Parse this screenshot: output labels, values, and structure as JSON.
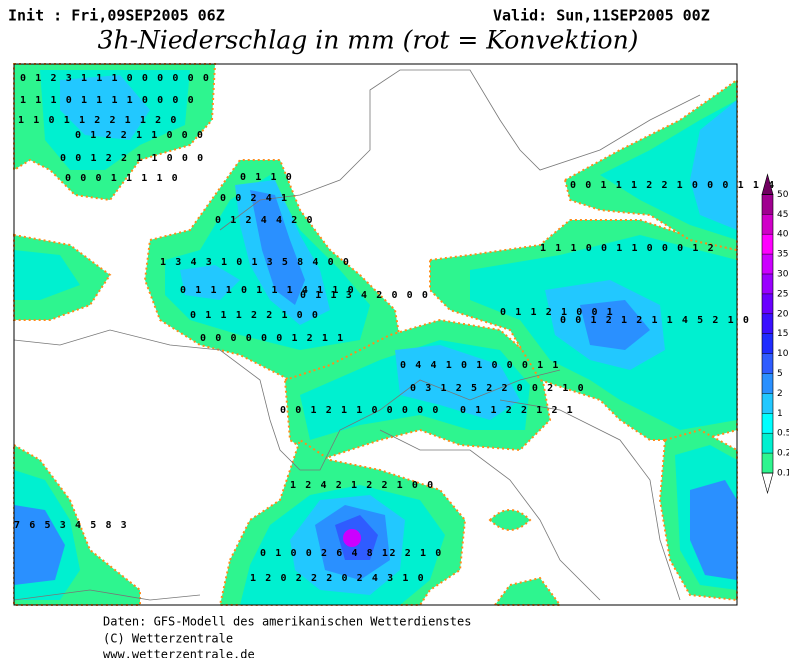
{
  "header": {
    "init": "Init : Fri,09SEP2005 06Z",
    "valid": "Valid: Sun,11SEP2005 00Z",
    "title": "3h-Niederschlag in mm (rot = Konvektion)"
  },
  "legend": {
    "levels": [
      0.1,
      0.2,
      0.5,
      1,
      2,
      5,
      10,
      15,
      20,
      25,
      30,
      35,
      40,
      45,
      50
    ],
    "colors": [
      "#2ef58f",
      "#00f0d0",
      "#00ffff",
      "#22c8ff",
      "#2a90ff",
      "#2f5cff",
      "#1f2cff",
      "#3a10ff",
      "#6a00ff",
      "#9a00ff",
      "#cc00ff",
      "#ff00ff",
      "#d000c8",
      "#a00090",
      "#700060"
    ]
  },
  "grid_labels": [
    "0 1 2 3 1 1 1 0 0 0 0 0 0",
    "1 1 1 0 1 1 1 1 0 0 0 0",
    "1 1 0 1 1 2 2 1 1 2 0",
    "0 1 2 2 1 1 0 0 0",
    "0 0 1 2 2 1 1 0 0 0",
    "0 0 0 1 1 1 1 0",
    "0 1 1 0",
    "0 0 2 4 1",
    "0 1 2 4 4 2 0",
    "1 3 4 3 1 0 1 3 5 8 4 0 0",
    "0 1 1 1 0 1 1 1 4 1 1 0",
    "0 1 1 1 2 2 1 0 0",
    "0 0 0 0 0 0 1 2 1 1",
    "0 1 1 3 4 2 0 0 0",
    "0 4 4 1 0 1 0 0 0 1 1",
    "0 3 1 2 5 2 2 0 0 2 1 0",
    "0 1 1 2 2 1 2 1",
    "0 0 1 2 1 1 0 0 0 0 0",
    "1 1 1 0 0 1 1 0 0 0 1 2",
    "0 0 1 1 1 2 2 1 0 0 0 1 1 4",
    "0 1 1 2 1 0 0 1",
    "0 0 1 2 1 2 1 1 4 5 2 1 0",
    "1 2 4 2 1 2 2 1 0 0",
    "0 1 0 0 2 6 4 8 12 2 1 0",
    "1 2 0 2 2 2 0 2 4 3 1 0",
    "7 6 5 3 4 5 8 3"
  ],
  "footer": [
    "Daten: GFS-Modell des amerikanischen Wetterdienstes",
    "(C) Wetterzentrale",
    "www.wetterzentrale.de"
  ]
}
